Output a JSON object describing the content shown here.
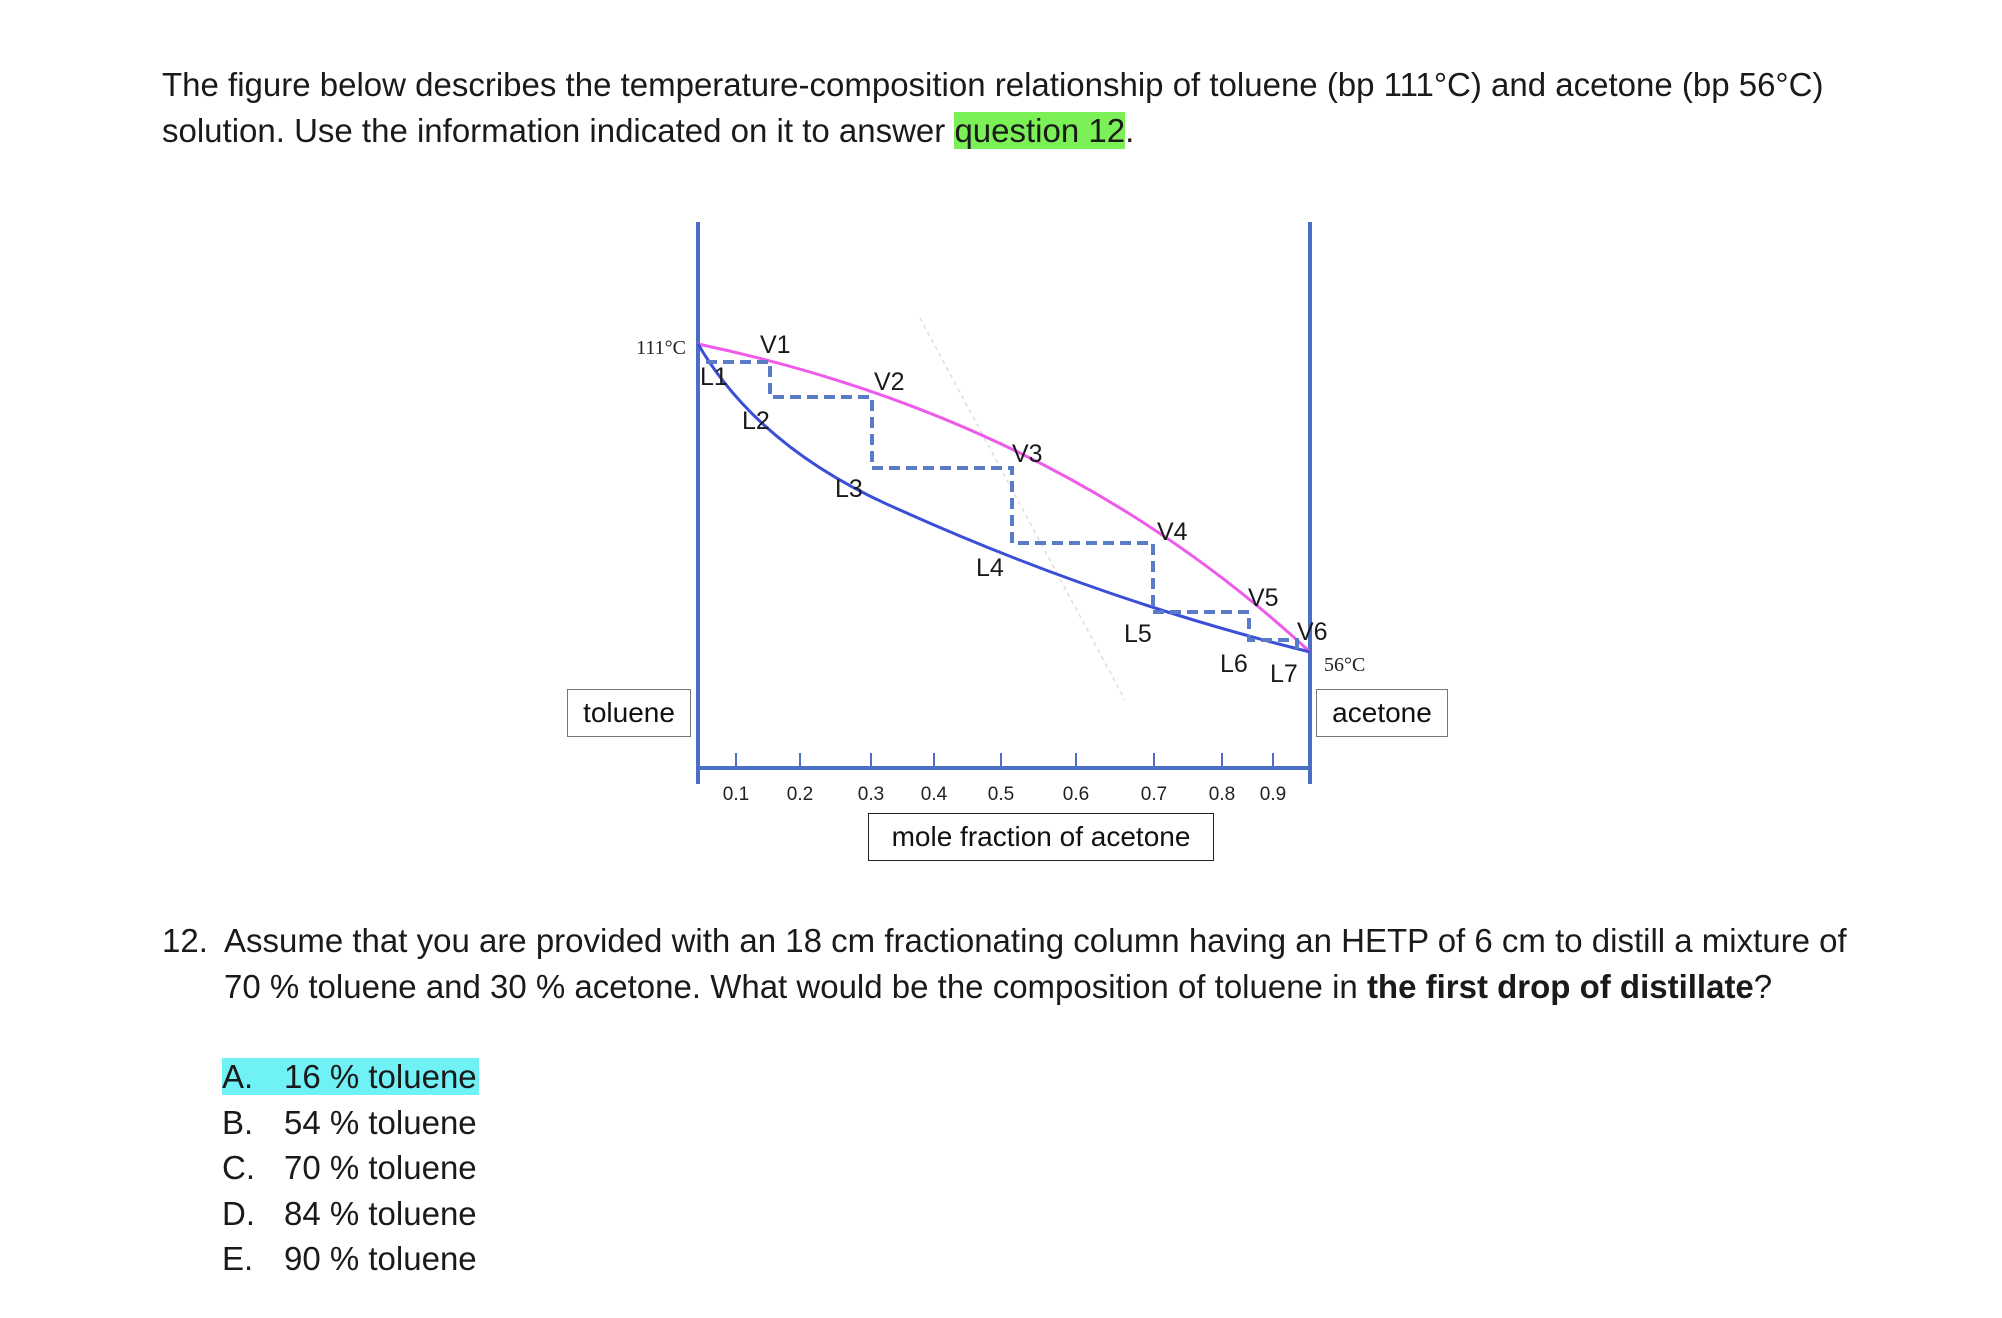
{
  "intro": {
    "before": "The figure below describes the temperature-composition relationship of toluene (bp 111°C) and acetone (bp 56°C) solution. Use the information indicated on it to answer ",
    "highlight": "question 12",
    "after": "."
  },
  "figure": {
    "left_temp_label": "111°C",
    "right_temp_label": "56°C",
    "left_component": "toluene",
    "right_component": "acetone",
    "xaxis_label": "mole fraction of acetone",
    "x_ticks": [
      "0.1",
      "0.2",
      "0.3",
      "0.4",
      "0.5",
      "0.6",
      "0.7",
      "0.8",
      "0.9"
    ],
    "vapor_points": [
      "V1",
      "V2",
      "V3",
      "V4",
      "V5",
      "V6"
    ],
    "liquid_points": [
      "L1",
      "L2",
      "L3",
      "L4",
      "L5",
      "L6",
      "L7"
    ],
    "colors": {
      "vapor_curve": "#EE5BEA",
      "liquid_curve": "#3A4FD8",
      "steps": "#5A7CC7",
      "axes": "#4A6FC4"
    }
  },
  "question": {
    "number": "12.",
    "text_before": "Assume that you are provided with an 18 cm fractionating column having an HETP of 6 cm to distill a mixture of 70 % toluene and 30 % acetone. What would be the composition of toluene in ",
    "text_bold": "the first drop of distillate",
    "text_after": "?"
  },
  "options": [
    {
      "letter": "A.",
      "text": "16 % toluene",
      "highlighted": true
    },
    {
      "letter": "B.",
      "text": "54 % toluene",
      "highlighted": false
    },
    {
      "letter": "C.",
      "text": "70 % toluene",
      "highlighted": false
    },
    {
      "letter": "D.",
      "text": "84 % toluene",
      "highlighted": false
    },
    {
      "letter": "E.",
      "text": "90 % toluene",
      "highlighted": false
    }
  ]
}
